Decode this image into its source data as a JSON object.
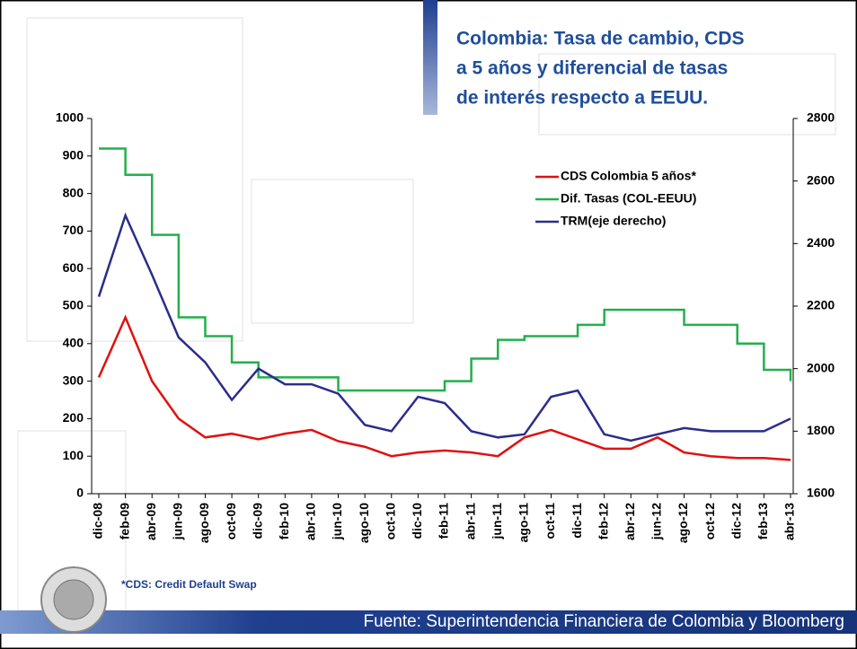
{
  "chart_data": {
    "type": "line",
    "title": [
      "Colombia: Tasa de cambio, CDS",
      "a 5 años y diferencial de tasas",
      "de interés respecto a EEUU."
    ],
    "categories": [
      "dic-08",
      "feb-09",
      "abr-09",
      "jun-09",
      "ago-09",
      "oct-09",
      "dic-09",
      "feb-10",
      "abr-10",
      "jun-10",
      "ago-10",
      "oct-10",
      "dic-10",
      "feb-11",
      "abr-11",
      "jun-11",
      "ago-11",
      "oct-11",
      "dic-11",
      "feb-12",
      "abr-12",
      "jun-12",
      "ago-12",
      "oct-12",
      "dic-12",
      "feb-13",
      "abr-13"
    ],
    "series": [
      {
        "name": "CDS Colombia 5 años*",
        "color": "#e01010",
        "values": [
          310,
          470,
          300,
          200,
          150,
          160,
          145,
          160,
          170,
          140,
          125,
          100,
          110,
          115,
          110,
          100,
          150,
          170,
          145,
          120,
          120,
          150,
          110,
          100,
          95,
          95,
          90
        ]
      },
      {
        "name": "Dif. Tasas (COL-EEUU)",
        "color": "#22b04a",
        "step": true,
        "values": [
          920,
          850,
          690,
          470,
          420,
          350,
          310,
          310,
          310,
          275,
          275,
          275,
          275,
          300,
          360,
          410,
          420,
          420,
          450,
          490,
          490,
          490,
          450,
          450,
          400,
          330,
          300
        ]
      },
      {
        "name": "TRM(eje derecho)",
        "color": "#2b2c8c",
        "axis": "y2",
        "values": [
          2230,
          2490,
          2300,
          2100,
          2020,
          1900,
          2000,
          1950,
          1950,
          1920,
          1820,
          1800,
          1910,
          1890,
          1800,
          1780,
          1790,
          1910,
          1930,
          1790,
          1770,
          1790,
          1810,
          1800,
          1800,
          1800,
          1840
        ]
      }
    ],
    "ylim": [
      0,
      1000
    ],
    "yticks": [
      0,
      100,
      200,
      300,
      400,
      500,
      600,
      700,
      800,
      900,
      1000
    ],
    "y2lim": [
      1600,
      2800
    ],
    "y2ticks": [
      1600,
      1800,
      2000,
      2200,
      2400,
      2600,
      2800
    ],
    "note": "*CDS: Credit Default Swap",
    "source": "Fuente: Superintendencia Financiera de Colombia y Bloomberg"
  }
}
